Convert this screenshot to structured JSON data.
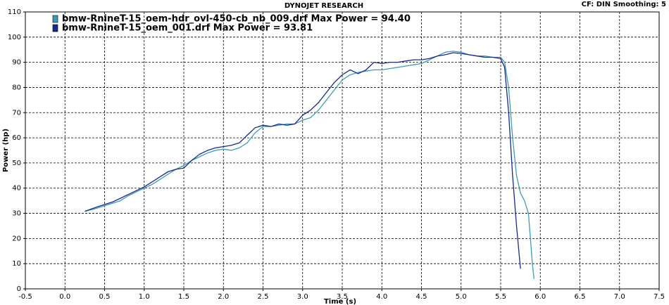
{
  "chart_data": {
    "type": "line",
    "title": "DYNOJET RESEARCH",
    "header_right": "CF: DIN  Smoothing: 5",
    "x_label": "Time (s)",
    "y_label": "Power (hp)",
    "grid": true,
    "xlim": [
      -0.5,
      7.5
    ],
    "ylim": [
      0,
      110
    ],
    "xticks": [
      -0.5,
      {
        "value": 0,
        "label": "0.0"
      },
      0.5,
      {
        "value": 1,
        "label": "1.0"
      },
      1.5,
      {
        "value": 2,
        "label": "2.0"
      },
      2.5,
      {
        "value": 3,
        "label": "3.0"
      },
      3.5,
      {
        "value": 4,
        "label": "4.0"
      },
      4.5,
      {
        "value": 5,
        "label": "5.0"
      },
      5.5,
      {
        "value": 6,
        "label": "6.0"
      },
      6.5,
      {
        "value": 7,
        "label": "7.0"
      },
      7.5
    ],
    "yticks": [
      0,
      10,
      20,
      30,
      40,
      50,
      60,
      70,
      80,
      90,
      100,
      110
    ],
    "series": [
      {
        "name": "bmw-RnineT-15_oem-hdr_ovl-450-cb_nb_009.drf Max Power = 94.40",
        "color": "#3c9cb8",
        "x": [
          0.25,
          0.4,
          0.5,
          0.6,
          0.7,
          0.8,
          0.9,
          1.0,
          1.1,
          1.2,
          1.3,
          1.4,
          1.5,
          1.6,
          1.7,
          1.8,
          1.9,
          2.0,
          2.1,
          2.2,
          2.3,
          2.4,
          2.5,
          2.6,
          2.7,
          2.8,
          2.9,
          3.0,
          3.1,
          3.2,
          3.3,
          3.4,
          3.5,
          3.6,
          3.7,
          3.8,
          3.9,
          4.0,
          4.1,
          4.2,
          4.3,
          4.4,
          4.5,
          4.6,
          4.7,
          4.8,
          4.9,
          5.0,
          5.1,
          5.2,
          5.3,
          5.4,
          5.5,
          5.55,
          5.6,
          5.65,
          5.7,
          5.75,
          5.8,
          5.85,
          5.9,
          5.92
        ],
        "values": [
          30.8,
          32,
          33,
          34,
          35,
          37,
          38.5,
          40,
          41.5,
          43.5,
          45.5,
          47.5,
          49,
          51,
          52.5,
          54,
          55,
          55.5,
          55,
          56,
          58,
          62,
          64.5,
          64.5,
          65,
          65.5,
          65.5,
          67,
          68,
          71,
          75,
          79,
          83,
          85,
          86,
          86.5,
          87,
          87,
          87.5,
          88,
          88.5,
          89,
          89.5,
          91,
          92.5,
          94,
          94.4,
          94,
          93,
          92.5,
          92.5,
          92,
          92,
          90,
          80,
          60,
          45,
          38,
          35,
          30,
          10,
          4
        ]
      },
      {
        "name": "bmw-RnineT-15_oem_001.drf Max Power = 93.81",
        "color": "#1a2a8c",
        "x": [
          0.25,
          0.4,
          0.5,
          0.6,
          0.7,
          0.8,
          0.9,
          1.0,
          1.1,
          1.2,
          1.3,
          1.4,
          1.5,
          1.6,
          1.7,
          1.8,
          1.9,
          2.0,
          2.1,
          2.2,
          2.3,
          2.4,
          2.5,
          2.6,
          2.7,
          2.8,
          2.9,
          3.0,
          3.1,
          3.2,
          3.3,
          3.4,
          3.5,
          3.6,
          3.7,
          3.8,
          3.9,
          4.0,
          4.1,
          4.2,
          4.3,
          4.4,
          4.5,
          4.6,
          4.7,
          4.8,
          4.9,
          5.0,
          5.1,
          5.2,
          5.3,
          5.4,
          5.5,
          5.55,
          5.6,
          5.65,
          5.7,
          5.75
        ],
        "values": [
          30.8,
          32.5,
          33.5,
          34.5,
          36,
          37.5,
          39,
          40.5,
          42.5,
          44.5,
          46.5,
          47.5,
          48,
          51,
          53.5,
          55,
          56,
          56.5,
          57,
          58,
          61,
          64,
          65,
          64.5,
          65.5,
          65,
          65.5,
          69,
          71,
          74,
          78,
          82,
          85,
          87,
          85.5,
          87,
          90,
          89.5,
          90,
          90,
          90.5,
          91,
          91,
          91.5,
          92.5,
          93,
          93.8,
          93.5,
          93,
          92.5,
          92,
          92,
          91.5,
          88,
          70,
          45,
          25,
          8
        ]
      }
    ]
  }
}
